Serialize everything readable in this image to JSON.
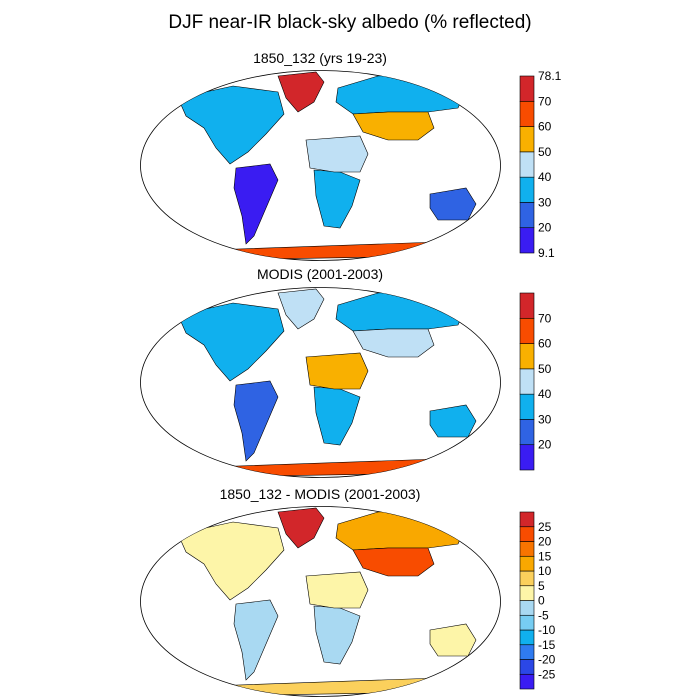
{
  "main_title": "DJF near-IR black-sky albedo (% reflected)",
  "chart_data": [
    {
      "type": "heatmap",
      "title": "1850_132 (yrs 19-23)",
      "projection": "Robinson world map",
      "colorbar": {
        "colors": [
          "#3a1cf2",
          "#2f63e3",
          "#10b0ee",
          "#bfe0f5",
          "#f9b000",
          "#f84c00",
          "#d2262a"
        ],
        "levels": [
          20,
          30,
          40,
          50,
          60,
          70
        ],
        "min_label": "9.1",
        "max_label": "78.1",
        "tick_labels": [
          "9.1",
          "20",
          "30",
          "40",
          "50",
          "60",
          "70",
          "78.1"
        ]
      },
      "regions": [
        {
          "name": "Arctic / Greenland",
          "level": 6
        },
        {
          "name": "Northern Eurasia",
          "level": 2
        },
        {
          "name": "Central Asia / Tibet",
          "level": 4
        },
        {
          "name": "North America",
          "level": 2
        },
        {
          "name": "South America",
          "level": 0
        },
        {
          "name": "Africa",
          "level": 2
        },
        {
          "name": "Sahara",
          "level": 3
        },
        {
          "name": "Australia",
          "level": 1
        },
        {
          "name": "Antarctica",
          "level": 5
        }
      ]
    },
    {
      "type": "heatmap",
      "title": "MODIS (2001-2003)",
      "projection": "Robinson world map",
      "colorbar": {
        "colors": [
          "#3a1cf2",
          "#2f63e3",
          "#10b0ee",
          "#bfe0f5",
          "#f9b000",
          "#f84c00",
          "#d2262a"
        ],
        "levels": [
          20,
          30,
          40,
          50,
          60,
          70
        ],
        "tick_labels": [
          "20",
          "30",
          "40",
          "50",
          "60",
          "70"
        ]
      },
      "regions": [
        {
          "name": "Arctic / Greenland",
          "level": 3
        },
        {
          "name": "Northern Eurasia",
          "level": 2
        },
        {
          "name": "Central Asia / Tibet",
          "level": 3
        },
        {
          "name": "North America",
          "level": 2
        },
        {
          "name": "South America",
          "level": 1
        },
        {
          "name": "Africa",
          "level": 2
        },
        {
          "name": "Sahara",
          "level": 4
        },
        {
          "name": "Australia",
          "level": 2
        },
        {
          "name": "Antarctica",
          "level": 5
        }
      ]
    },
    {
      "type": "heatmap",
      "title": "1850_132 - MODIS (2001-2003)",
      "projection": "Robinson world map",
      "colorbar": {
        "colors": [
          "#3a1cf2",
          "#2b47e6",
          "#2f7bf0",
          "#10b0ee",
          "#77cdf2",
          "#a9d9f2",
          "#fdf5a8",
          "#fbd05c",
          "#f9a800",
          "#f87400",
          "#f84c00",
          "#d2262a"
        ],
        "levels": [
          -25,
          -20,
          -15,
          -10,
          -5,
          0,
          5,
          10,
          15,
          20,
          25
        ],
        "tick_labels": [
          "25",
          "20",
          "15",
          "10",
          "5",
          "0",
          "-5",
          "-10",
          "-15",
          "-20",
          "-25"
        ]
      },
      "regions": [
        {
          "name": "Arctic / Greenland",
          "level": 11
        },
        {
          "name": "Northern Eurasia",
          "level": 8
        },
        {
          "name": "Central Asia / Tibet",
          "level": 10
        },
        {
          "name": "North America",
          "level": 6
        },
        {
          "name": "South America",
          "level": 5
        },
        {
          "name": "Africa",
          "level": 5
        },
        {
          "name": "Sahara",
          "level": 6
        },
        {
          "name": "Australia",
          "level": 6
        },
        {
          "name": "Antarctica",
          "level": 7
        }
      ]
    }
  ]
}
